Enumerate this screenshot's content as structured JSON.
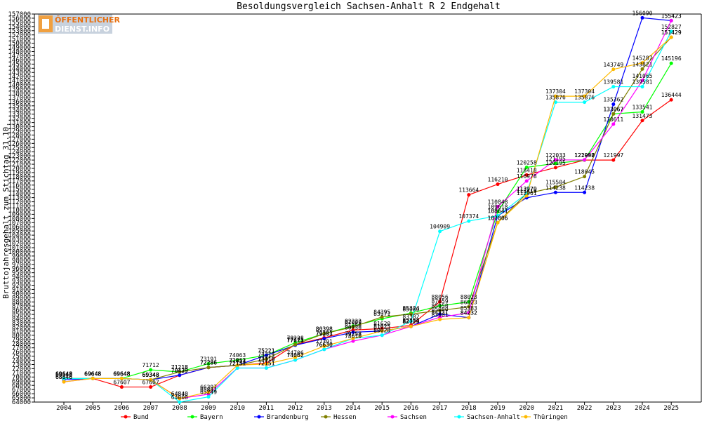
{
  "logo": {
    "line1": "ÖFFENTLICHER",
    "line2": "DIENST.INFO"
  },
  "chart_data": {
    "type": "line",
    "title": "Besoldungsvergleich Sachsen-Anhalt R 2 Endgehalt",
    "ylabel": "Bruttojahresgehalt zum Stichtag 31.10.",
    "xlabel": "",
    "ylim": [
      64000,
      157000
    ],
    "ytick_step": 1000,
    "grid": false,
    "legend_position": "bottom",
    "categories": [
      "2004",
      "2005",
      "2006",
      "2007",
      "2008",
      "2009",
      "2010",
      "2011",
      "2012",
      "2013",
      "2014",
      "2015",
      "2016",
      "2017",
      "2018",
      "2019",
      "2020",
      "2021",
      "2022",
      "2023",
      "2024",
      "2025"
    ],
    "series": [
      {
        "name": "Bund",
        "color": "#ff0000",
        "values": [
          69648,
          69648,
          67607,
          67607,
          70429,
          72286,
          72813,
          73310,
          77775,
          79391,
          81256,
          81620,
          82382,
          88056,
          113664,
          116210,
          118418,
          120195,
          121997,
          121997,
          131473,
          136444
        ]
      },
      {
        "name": "Bayern",
        "color": "#00ff00",
        "values": [
          69648,
          69648,
          69648,
          71712,
          71218,
          73191,
          74063,
          75221,
          78228,
          80398,
          82232,
          83971,
          85324,
          87059,
          88023,
          109618,
          120258,
          121195,
          121990,
          133067,
          133541,
          145196
        ]
      },
      {
        "name": "Brandenburg",
        "color": "#0000ff",
        "values": [
          69348,
          69648,
          69648,
          69348,
          70439,
          72286,
          72813,
          75221,
          77621,
          79203,
          80736,
          81025,
          82129,
          85080,
          84232,
          108641,
          112961,
          114238,
          114238,
          135362,
          156090,
          155423
        ]
      },
      {
        "name": "Hessen",
        "color": "#808000",
        "values": [
          69648,
          69648,
          69648,
          69348,
          71218,
          72286,
          72813,
          74314,
          77775,
          80398,
          82009,
          84395,
          85080,
          85950,
          86823,
          107006,
          113979,
          115504,
          118045,
          133067,
          143821,
          151429
        ]
      },
      {
        "name": "Sachsen",
        "color": "#ff00ff",
        "values": [
          68846,
          69648,
          69648,
          69348,
          64840,
          65881,
          72151,
          72151,
          74062,
          76630,
          78610,
          80028,
          82129,
          84331,
          85383,
          110848,
          116978,
          122033,
          122033,
          130611,
          141065,
          155423
        ]
      },
      {
        "name": "Sachsen-Anhalt",
        "color": "#00ffff",
        "values": [
          69648,
          69648,
          69648,
          69348,
          64008,
          65249,
          72151,
          72151,
          74062,
          76630,
          79258,
          80028,
          83382,
          104909,
          107374,
          108641,
          113979,
          135876,
          135876,
          139581,
          139581,
          152827
        ]
      },
      {
        "name": "Thüringen",
        "color": "#ffbb00",
        "values": [
          68846,
          69648,
          69648,
          69348,
          64840,
          66397,
          72851,
          73110,
          74706,
          77391,
          79258,
          81025,
          82129,
          83801,
          84232,
          107006,
          113419,
          137304,
          137304,
          143749,
          145287,
          151429
        ]
      }
    ]
  }
}
